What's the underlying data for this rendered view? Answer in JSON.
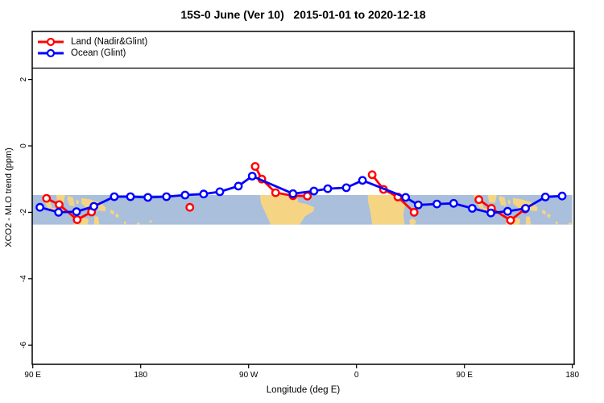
{
  "title": "15S-0 June (Ver 10)   2015-01-01 to 2020-12-18",
  "legend": {
    "items": [
      {
        "label": "Land (Nadir&Glint)",
        "color": "#ff0000"
      },
      {
        "label": "Ocean (Glint)",
        "color": "#0000ff"
      }
    ]
  },
  "chart_data": {
    "type": "line",
    "title": "15S-0 June (Ver 10)   2015-01-01 to 2020-12-18",
    "xlabel": "Longitude (deg E)",
    "ylabel": "XCO2 - MLO trend (ppm)",
    "xlim": [
      90,
      540
    ],
    "ylim": [
      -6.58,
      3.45
    ],
    "grid": false,
    "legend_position": "top-left",
    "xticks": [
      {
        "pos": 90,
        "label": "90 E"
      },
      {
        "pos": 180,
        "label": "180"
      },
      {
        "pos": 270,
        "label": "90 W"
      },
      {
        "pos": 360,
        "label": "0"
      },
      {
        "pos": 450,
        "label": "90 E"
      },
      {
        "pos": 540,
        "label": "180"
      }
    ],
    "yticks": [
      {
        "pos": 2,
        "label": "2"
      },
      {
        "pos": 0,
        "label": "0"
      },
      {
        "pos": -2,
        "label": "-2"
      },
      {
        "pos": -4,
        "label": "-4"
      },
      {
        "pos": -6,
        "label": "-6"
      }
    ],
    "series": [
      {
        "name": "Land (Nadir&Glint)",
        "color": "#ff0000",
        "marker": "open-circle",
        "segments": [
          [
            [
              101.5,
              -1.58
            ],
            [
              112,
              -1.77
            ],
            [
              127,
              -2.22
            ],
            [
              139,
              -1.99
            ]
          ],
          [
            [
              275.5,
              -0.62
            ],
            [
              281,
              -1.0
            ],
            [
              292.5,
              -1.41
            ],
            [
              307,
              -1.5
            ],
            [
              319,
              -1.51
            ]
          ],
          [
            [
              373,
              -0.87
            ],
            [
              382.5,
              -1.31
            ],
            [
              394.5,
              -1.54
            ],
            [
              408,
              -2.0
            ]
          ],
          [
            [
              462,
              -1.62
            ],
            [
              472.5,
              -1.88
            ],
            [
              488.5,
              -2.24
            ],
            [
              500.5,
              -1.9
            ]
          ]
        ],
        "isolated_points": [
          [
            221,
            -1.85
          ]
        ]
      },
      {
        "name": "Ocean (Glint)",
        "color": "#0000ff",
        "marker": "open-circle",
        "segments": [
          [
            [
              96,
              -1.85
            ],
            [
              111.5,
              -2.0
            ],
            [
              126.5,
              -1.98
            ],
            [
              141,
              -1.82
            ],
            [
              158,
              -1.53
            ],
            [
              171.5,
              -1.53
            ],
            [
              186,
              -1.55
            ],
            [
              201.5,
              -1.53
            ],
            [
              217,
              -1.48
            ],
            [
              232.5,
              -1.45
            ],
            [
              246,
              -1.38
            ],
            [
              261.5,
              -1.21
            ],
            [
              273,
              -0.91
            ],
            [
              307,
              -1.44
            ],
            [
              324.5,
              -1.36
            ],
            [
              336,
              -1.29
            ],
            [
              351.5,
              -1.26
            ],
            [
              365,
              -1.04
            ],
            [
              401,
              -1.55
            ],
            [
              411.5,
              -1.78
            ],
            [
              427,
              -1.75
            ],
            [
              441,
              -1.73
            ],
            [
              456.5,
              -1.88
            ],
            [
              472,
              -2.02
            ],
            [
              486,
              -1.97
            ],
            [
              501,
              -1.88
            ],
            [
              517.5,
              -1.54
            ],
            [
              531.5,
              -1.51
            ]
          ]
        ],
        "isolated_points": []
      }
    ],
    "map_band": {
      "description": "15S-0 latitude strip world map",
      "ocean_color": "#a9bfdb",
      "land_color": "#f5d584",
      "y_top": -1.48,
      "y_bottom": -2.37,
      "land_patches": [
        {
          "name": "sumatra",
          "pts": [
            [
              97.5,
              0
            ],
            [
              102,
              0
            ],
            [
              106,
              0.4
            ],
            [
              103.5,
              0.5
            ],
            [
              98.5,
              0.12
            ]
          ]
        },
        {
          "name": "java-sunda",
          "pts": [
            [
              105,
              0.42
            ],
            [
              114,
              0.48
            ],
            [
              121,
              0.55
            ],
            [
              125.5,
              0.62
            ],
            [
              124.5,
              0.7
            ],
            [
              113,
              0.56
            ],
            [
              105,
              0.5
            ]
          ]
        },
        {
          "name": "borneo",
          "pts": [
            [
              109.5,
              0
            ],
            [
              117,
              0
            ],
            [
              115.5,
              0.27
            ],
            [
              110.5,
              0.25
            ]
          ]
        },
        {
          "name": "sulawesi",
          "pts": [
            [
              119,
              0.03
            ],
            [
              123.5,
              0.08
            ],
            [
              125,
              0.38
            ],
            [
              120.5,
              0.35
            ],
            [
              119,
              0.15
            ]
          ]
        },
        {
          "name": "moluccas",
          "pts": [
            [
              126.5,
              0.15
            ],
            [
              128.5,
              0.2
            ],
            [
              128,
              0.33
            ],
            [
              126,
              0.28
            ]
          ]
        },
        {
          "name": "new-guinea",
          "pts": [
            [
              130.5,
              0.1
            ],
            [
              138,
              0.15
            ],
            [
              146,
              0.25
            ],
            [
              151,
              0.42
            ],
            [
              150.5,
              0.55
            ],
            [
              144,
              0.52
            ],
            [
              136,
              0.48
            ],
            [
              130.5,
              0.28
            ]
          ]
        },
        {
          "name": "kimberley",
          "pts": [
            [
              124.5,
              0.95
            ],
            [
              129,
              0.9
            ],
            [
              128.5,
              1
            ],
            [
              124,
              1
            ]
          ]
        },
        {
          "name": "arnhem-land",
          "pts": [
            [
              130,
              0.78
            ],
            [
              136.5,
              0.8
            ],
            [
              136,
              1
            ],
            [
              129.5,
              1
            ]
          ]
        },
        {
          "name": "cape-york",
          "pts": [
            [
              141.5,
              0.72
            ],
            [
              144.5,
              0.73
            ],
            [
              145.5,
              1
            ],
            [
              141,
              1
            ]
          ]
        },
        {
          "name": "solomons-a",
          "pts": [
            [
              155,
              0.5
            ],
            [
              158,
              0.55
            ],
            [
              157.5,
              0.67
            ],
            [
              154.5,
              0.6
            ]
          ]
        },
        {
          "name": "solomons-b",
          "pts": [
            [
              159.5,
              0.62
            ],
            [
              162,
              0.68
            ],
            [
              161,
              0.78
            ],
            [
              158.8,
              0.72
            ]
          ]
        },
        {
          "name": "vanuatu",
          "pts": [
            [
              166.5,
              0.88
            ],
            [
              168,
              0.92
            ],
            [
              167.3,
              1
            ],
            [
              165.8,
              0.97
            ]
          ]
        },
        {
          "name": "fiji",
          "pts": [
            [
              177,
              0.93
            ],
            [
              179.5,
              0.95
            ],
            [
              179,
              1
            ],
            [
              176.8,
              1
            ]
          ]
        },
        {
          "name": "samoa",
          "pts": [
            [
              187.5,
              0.85
            ],
            [
              189.5,
              0.87
            ],
            [
              189,
              0.94
            ],
            [
              187.2,
              0.92
            ]
          ]
        },
        {
          "name": "south-america",
          "pts": [
            [
              279.5,
              0
            ],
            [
              310,
              0
            ],
            [
              311.5,
              0.25
            ],
            [
              318,
              0.3
            ],
            [
              325,
              0.42
            ],
            [
              324,
              0.55
            ],
            [
              317,
              0.72
            ],
            [
              312.5,
              1
            ],
            [
              288.5,
              1
            ],
            [
              284,
              0.6
            ],
            [
              280.5,
              0.3
            ]
          ]
        },
        {
          "name": "africa",
          "pts": [
            [
              9.5,
              0
            ],
            [
              41,
              0
            ],
            [
              40.5,
              0.35
            ],
            [
              39,
              0.65
            ],
            [
              40,
              1
            ],
            [
              13,
              1
            ],
            [
              11.5,
              0.55
            ],
            [
              9.5,
              0.2
            ]
          ]
        },
        {
          "name": "madagascar",
          "pts": [
            [
              44,
              0.85
            ],
            [
              47,
              0.79
            ],
            [
              50,
              0.9
            ],
            [
              48.5,
              1
            ],
            [
              44.5,
              1
            ]
          ]
        }
      ]
    }
  }
}
